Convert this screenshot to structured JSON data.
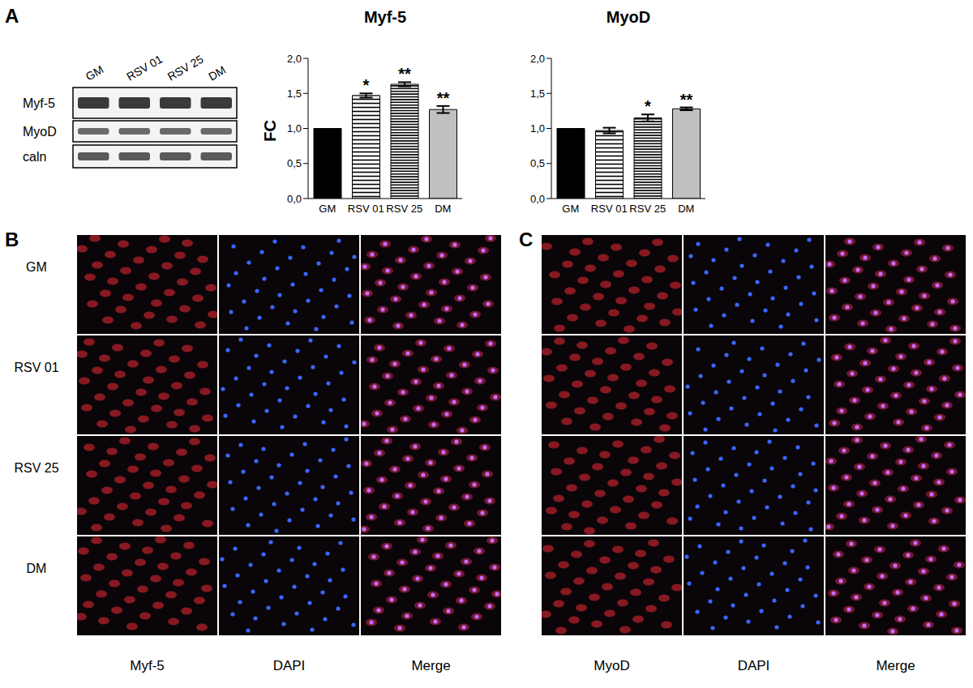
{
  "chart_data": [
    {
      "type": "bar",
      "title": "Myf-5",
      "y_label": "FC",
      "categories": [
        "GM",
        "RSV 01",
        "RSV 25",
        "DM"
      ],
      "values": [
        1.0,
        1.47,
        1.63,
        1.27
      ],
      "error": [
        0,
        0.03,
        0.03,
        0.05
      ],
      "annotations": [
        null,
        "*",
        "**",
        "**"
      ],
      "colors": [
        "#000000",
        "#ffffff",
        "#ffffff",
        "#c0c0c0"
      ],
      "ylim": [
        0,
        2
      ],
      "yticks": [
        {
          "value": 0,
          "label": "0,0"
        },
        {
          "value": 0.5,
          "label": "0,5"
        },
        {
          "value": 1,
          "label": "1,0"
        },
        {
          "value": 1.5,
          "label": "1,5"
        },
        {
          "value": 2,
          "label": "2,0"
        }
      ]
    },
    {
      "type": "bar",
      "title": "MyoD",
      "categories": [
        "GM",
        "RSV 01",
        "RSV 25",
        "DM"
      ],
      "values": [
        1.0,
        0.97,
        1.15,
        1.28
      ],
      "error": [
        0,
        0.04,
        0.05,
        0.02
      ],
      "annotations": [
        null,
        null,
        "*",
        "**"
      ],
      "colors": [
        "#000000",
        "#ffffff",
        "#ffffff",
        "#c0c0c0"
      ],
      "ylim": [
        0,
        2
      ],
      "yticks": [
        {
          "value": 0,
          "label": "0,0"
        },
        {
          "value": 0.5,
          "label": "0,5"
        },
        {
          "value": 1,
          "label": "1,0"
        },
        {
          "value": 1.5,
          "label": "1,5"
        },
        {
          "value": 2,
          "label": "2,0"
        }
      ]
    }
  ],
  "panels": [
    {
      "label": "A",
      "blot": {
        "lanes": [
          "GM",
          "RSV 01",
          "RSV 25",
          "DM"
        ],
        "rows": [
          "Myf-5",
          "MyoD",
          "caln"
        ]
      }
    },
    {
      "label": "B",
      "rows": [
        "GM",
        "RSV 01",
        "RSV 25",
        "DM"
      ],
      "columns": [
        "Myf-5",
        "DAPI",
        "Merge"
      ]
    },
    {
      "label": "C",
      "columns": [
        "MyoD",
        "DAPI",
        "Merge"
      ]
    }
  ]
}
